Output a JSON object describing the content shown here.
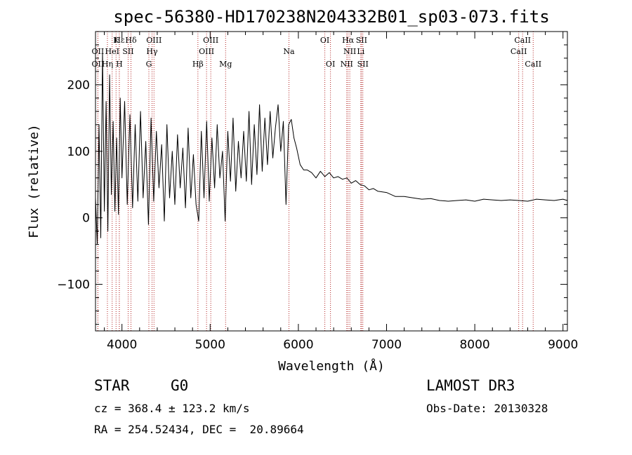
{
  "chart_data": {
    "type": "line",
    "title": "spec-56380-HD170238N204332B01_sp03-073.fits",
    "xlabel": "Wavelength (Å)",
    "ylabel": "Flux (relative)",
    "xlim": [
      3700,
      9050
    ],
    "ylim": [
      -170,
      280
    ],
    "xticks": [
      4000,
      5000,
      6000,
      7000,
      8000,
      9000
    ],
    "yticks": [
      -100,
      0,
      100,
      200
    ],
    "xtick_labels": [
      "4000",
      "5000",
      "6000",
      "7000",
      "8000",
      "9000"
    ],
    "ytick_labels": [
      "−100",
      "0",
      "100",
      "200"
    ],
    "line_color": "#000000",
    "marker_color": "#b22222",
    "series": [
      {
        "name": "flux",
        "x": [
          3700,
          3720,
          3740,
          3760,
          3780,
          3800,
          3820,
          3840,
          3860,
          3880,
          3900,
          3920,
          3940,
          3960,
          3980,
          4000,
          4030,
          4060,
          4090,
          4120,
          4150,
          4180,
          4210,
          4240,
          4270,
          4300,
          4330,
          4360,
          4390,
          4420,
          4450,
          4480,
          4510,
          4540,
          4570,
          4600,
          4630,
          4660,
          4690,
          4720,
          4750,
          4780,
          4810,
          4840,
          4870,
          4900,
          4930,
          4960,
          4990,
          5020,
          5050,
          5080,
          5110,
          5140,
          5170,
          5200,
          5230,
          5260,
          5290,
          5320,
          5350,
          5380,
          5410,
          5440,
          5470,
          5500,
          5530,
          5560,
          5590,
          5620,
          5650,
          5680,
          5710,
          5740,
          5770,
          5800,
          5830,
          5860,
          5890,
          5920,
          5950,
          5980,
          6020,
          6060,
          6100,
          6150,
          6200,
          6250,
          6300,
          6350,
          6400,
          6450,
          6500,
          6550,
          6600,
          6650,
          6700,
          6750,
          6800,
          6850,
          6900,
          7000,
          7100,
          7200,
          7300,
          7400,
          7500,
          7600,
          7700,
          7800,
          7900,
          8000,
          8100,
          8200,
          8300,
          8400,
          8500,
          8600,
          8700,
          8800,
          8900,
          9000,
          9050
        ],
        "y": [
          30,
          -40,
          140,
          -30,
          250,
          10,
          175,
          -20,
          215,
          35,
          145,
          10,
          120,
          5,
          180,
          60,
          175,
          20,
          155,
          15,
          140,
          25,
          160,
          30,
          115,
          -10,
          150,
          25,
          130,
          45,
          110,
          -5,
          140,
          30,
          100,
          20,
          125,
          45,
          105,
          15,
          135,
          30,
          95,
          20,
          -5,
          130,
          30,
          145,
          25,
          120,
          45,
          140,
          60,
          100,
          -5,
          130,
          55,
          150,
          40,
          115,
          60,
          130,
          55,
          160,
          50,
          140,
          65,
          170,
          70,
          150,
          80,
          160,
          90,
          135,
          170,
          100,
          145,
          20,
          140,
          148,
          120,
          105,
          80,
          72,
          72,
          68,
          60,
          70,
          62,
          68,
          60,
          62,
          58,
          60,
          52,
          56,
          50,
          48,
          42,
          44,
          40,
          38,
          32,
          32,
          30,
          28,
          29,
          26,
          25,
          26,
          27,
          25,
          28,
          27,
          26,
          27,
          26,
          25,
          28,
          27,
          26,
          28,
          26
        ]
      }
    ],
    "line_markers": [
      {
        "label": "Hε",
        "x": 3970,
        "row": 1
      },
      {
        "label": "K",
        "x": 3933,
        "row": 1
      },
      {
        "label": "Hδ",
        "x": 4102,
        "row": 1
      },
      {
        "label": "OII",
        "x": 3727,
        "row": 2
      },
      {
        "label": "HeI",
        "x": 3889,
        "row": 2
      },
      {
        "label": "SII",
        "x": 4070,
        "row": 2
      },
      {
        "label": "OII",
        "x": 3727,
        "row": 3
      },
      {
        "label": "Hη",
        "x": 3835,
        "row": 3
      },
      {
        "label": "H",
        "x": 3970,
        "row": 3
      },
      {
        "label": "OIII",
        "x": 4363,
        "row": 1
      },
      {
        "label": "Hγ",
        "x": 4341,
        "row": 2
      },
      {
        "label": "G",
        "x": 4305,
        "row": 3
      },
      {
        "label": "Hβ",
        "x": 4861,
        "row": 3
      },
      {
        "label": "OIII",
        "x": 5007,
        "row": 1
      },
      {
        "label": "OIII",
        "x": 4959,
        "row": 2
      },
      {
        "label": "Mg",
        "x": 5175,
        "row": 3
      },
      {
        "label": "Na",
        "x": 5893,
        "row": 2
      },
      {
        "label": "OI",
        "x": 6300,
        "row": 1
      },
      {
        "label": "OI",
        "x": 6364,
        "row": 3
      },
      {
        "label": "Hα",
        "x": 6563,
        "row": 1
      },
      {
        "label": "SII",
        "x": 6716,
        "row": 1
      },
      {
        "label": "NII",
        "x": 6583,
        "row": 2
      },
      {
        "label": "Li",
        "x": 6708,
        "row": 2
      },
      {
        "label": "NII",
        "x": 6548,
        "row": 3
      },
      {
        "label": "SII",
        "x": 6731,
        "row": 3
      },
      {
        "label": "CaII",
        "x": 8542,
        "row": 1
      },
      {
        "label": "CaII",
        "x": 8498,
        "row": 2
      },
      {
        "label": "CaII",
        "x": 8662,
        "row": 3
      }
    ]
  },
  "info": {
    "object_class": "STAR",
    "subclass": "G0",
    "survey": "LAMOST DR3",
    "cz": "cz = 368.4 ± 123.2 km/s",
    "obs_date": "Obs-Date: 20130328",
    "radec": "RA = 254.52434, DEC =  20.89664"
  }
}
